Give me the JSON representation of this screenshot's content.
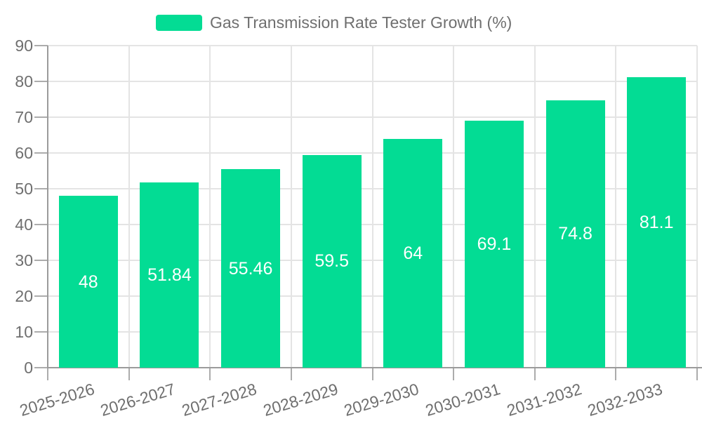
{
  "chart_data": {
    "type": "bar",
    "title": "Gas Transmission Rate Tester Growth (%)",
    "categories": [
      "2025-2026",
      "2026-2027",
      "2027-2028",
      "2028-2029",
      "2029-2030",
      "2030-2031",
      "2031-2032",
      "2032-2033"
    ],
    "values": [
      48,
      51.84,
      55.46,
      59.5,
      64,
      69.1,
      74.8,
      81.1
    ],
    "value_labels": [
      "48",
      "51.84",
      "55.46",
      "59.5",
      "64",
      "69.1",
      "74.8",
      "81.1"
    ],
    "ylim": [
      0,
      90
    ],
    "ytick_step": 10,
    "ytick_labels": [
      "0",
      "10",
      "20",
      "30",
      "40",
      "50",
      "60",
      "70",
      "80",
      "90"
    ],
    "grid": true,
    "legend_position": "top",
    "value_label_position": "center-inside",
    "x_label_rotation_deg": -17,
    "colors": {
      "bar": "#03DC94",
      "value_label": "#FFFFFF",
      "grid": "#E4E4E4",
      "axis": "#9B9B9B",
      "tick": "#ACACAC",
      "text": "#6F6F6F",
      "background": "#FFFFFF"
    }
  }
}
